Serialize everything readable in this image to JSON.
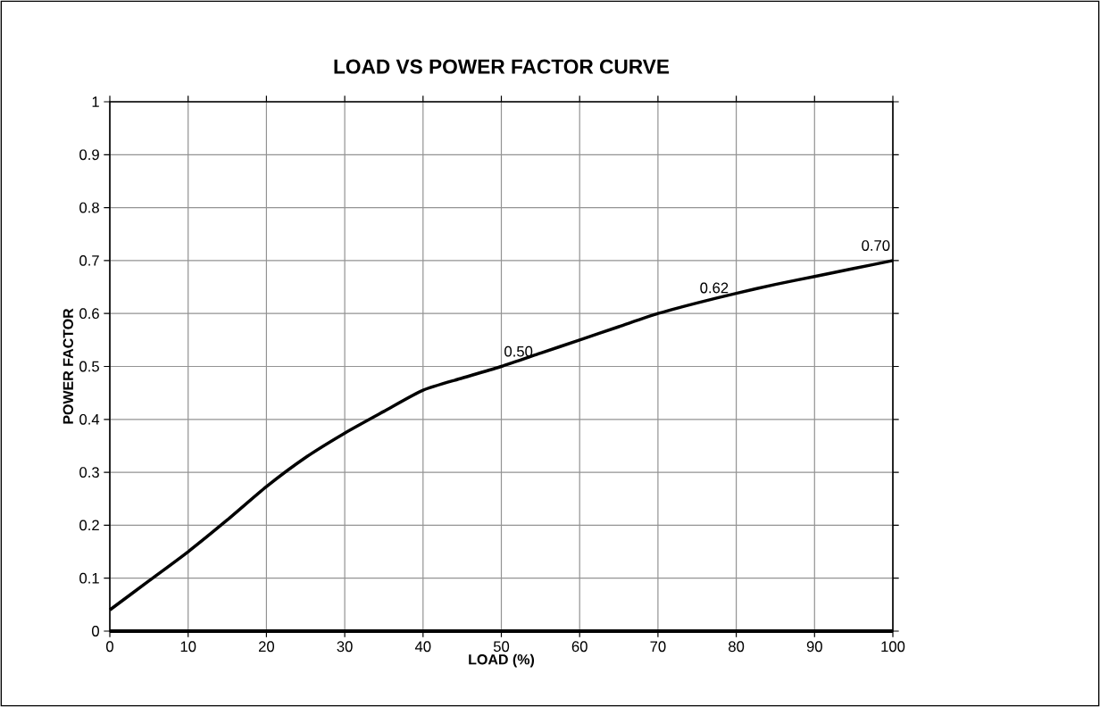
{
  "chart_data": {
    "type": "line",
    "title": "LOAD VS POWER FACTOR CURVE",
    "xlabel": "LOAD (%)",
    "ylabel": "POWER FACTOR",
    "x": [
      0,
      5,
      10,
      15,
      20,
      25,
      30,
      35,
      40,
      45,
      50,
      55,
      60,
      65,
      70,
      75,
      80,
      85,
      90,
      95,
      100
    ],
    "series": [
      {
        "color": "#000000",
        "values": [
          0.04,
          0.095,
          0.15,
          0.21,
          0.273,
          0.328,
          0.374,
          0.415,
          0.455,
          0.478,
          0.5,
          0.525,
          0.55,
          0.575,
          0.6,
          0.62,
          0.638,
          0.655,
          0.67,
          0.685,
          0.7
        ]
      }
    ],
    "xlim": [
      0,
      100
    ],
    "ylim": [
      0,
      1
    ],
    "xticks": [
      0,
      10,
      20,
      30,
      40,
      50,
      60,
      70,
      80,
      90,
      100
    ],
    "yticks": [
      0,
      0.1,
      0.2,
      0.3,
      0.4,
      0.5,
      0.6,
      0.7,
      0.8,
      0.9,
      1
    ],
    "grid": true,
    "line_style": "solid",
    "annotations": [
      {
        "text": "0.50",
        "x": 50,
        "y": 0.5
      },
      {
        "text": "0.62",
        "x": 75,
        "y": 0.62
      },
      {
        "text": "0.70",
        "x": 100,
        "y": 0.7
      }
    ]
  }
}
